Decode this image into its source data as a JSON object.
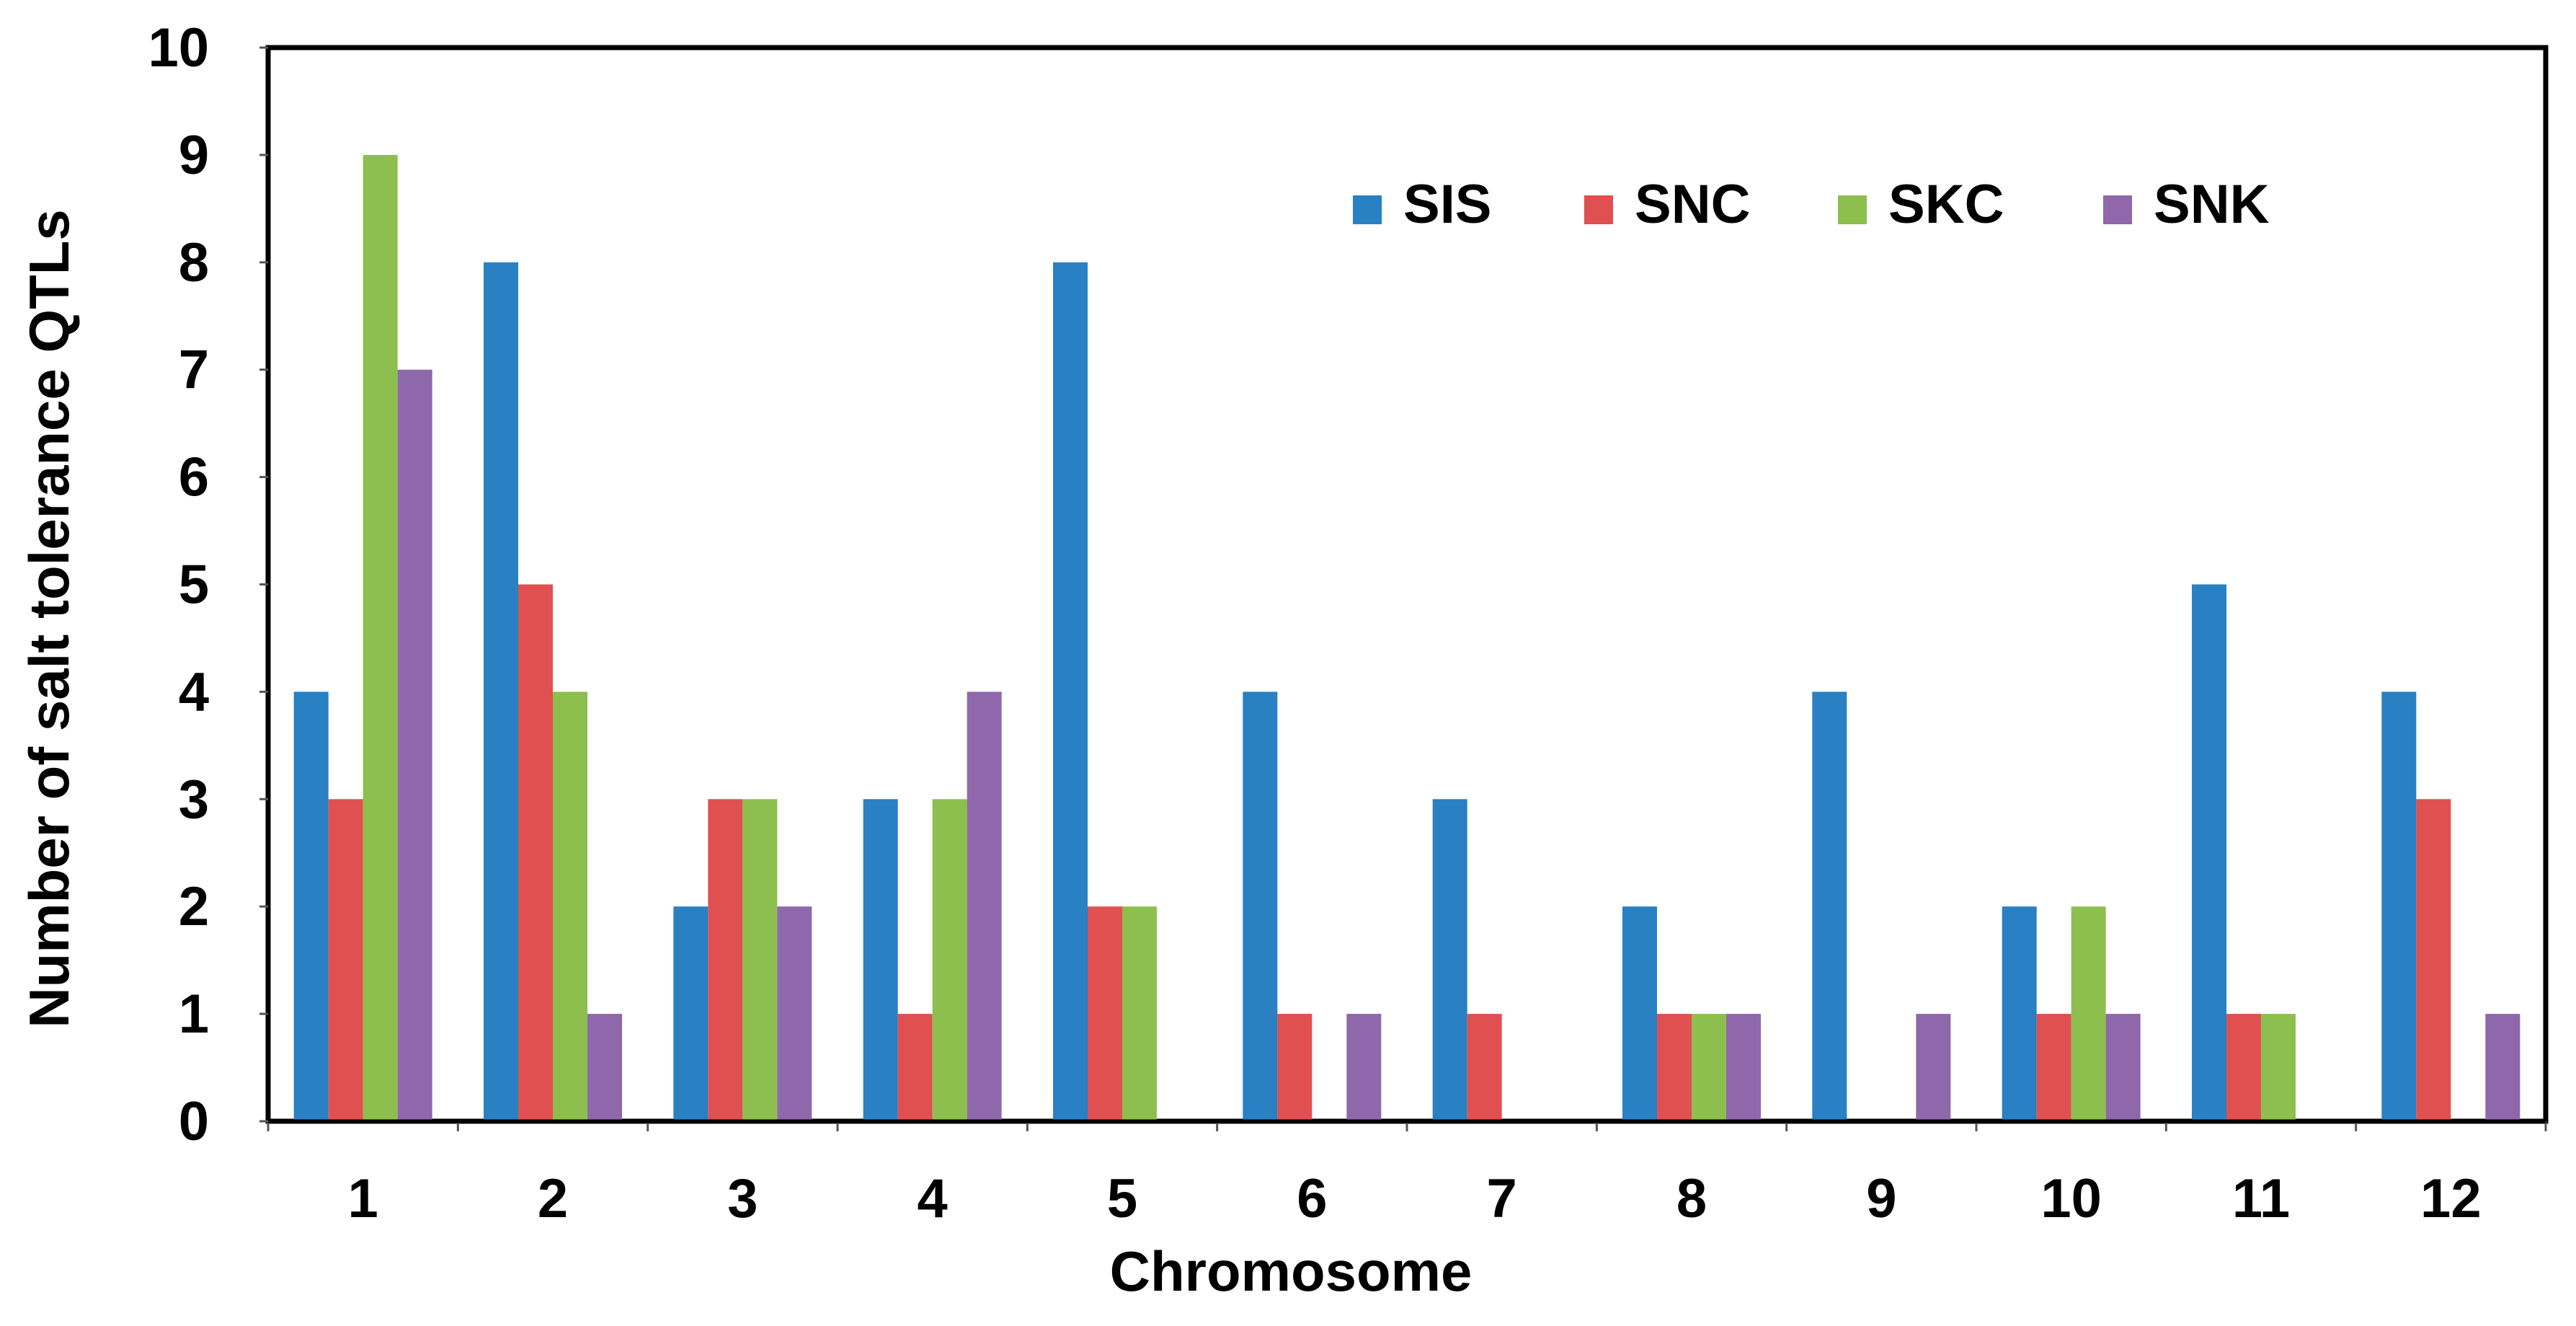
{
  "chart_data": {
    "type": "bar",
    "title": "",
    "xlabel": "Chromosome",
    "ylabel": "Number of salt tolerance QTLs",
    "ylim": [
      0,
      10
    ],
    "yticks": [
      "0",
      "1",
      "2",
      "3",
      "4",
      "5",
      "6",
      "7",
      "8",
      "9",
      "10"
    ],
    "grid": false,
    "legend_position": "top-right",
    "categories": [
      "1",
      "2",
      "3",
      "4",
      "5",
      "6",
      "7",
      "8",
      "9",
      "10",
      "11",
      "12"
    ],
    "series": [
      {
        "name": "SIS",
        "color": "#2980C2",
        "values": [
          4,
          8,
          2,
          3,
          8,
          4,
          3,
          2,
          4,
          2,
          5,
          4
        ]
      },
      {
        "name": "SNC",
        "color": "#E05050",
        "values": [
          3,
          5,
          3,
          1,
          2,
          1,
          1,
          1,
          0,
          1,
          1,
          3
        ]
      },
      {
        "name": "SKC",
        "color": "#8DBF4E",
        "values": [
          9,
          4,
          3,
          3,
          2,
          0,
          0,
          1,
          0,
          2,
          1,
          0
        ]
      },
      {
        "name": "SNK",
        "color": "#8F67AB",
        "values": [
          7,
          1,
          2,
          4,
          0,
          1,
          0,
          1,
          1,
          1,
          0,
          1
        ]
      }
    ]
  }
}
